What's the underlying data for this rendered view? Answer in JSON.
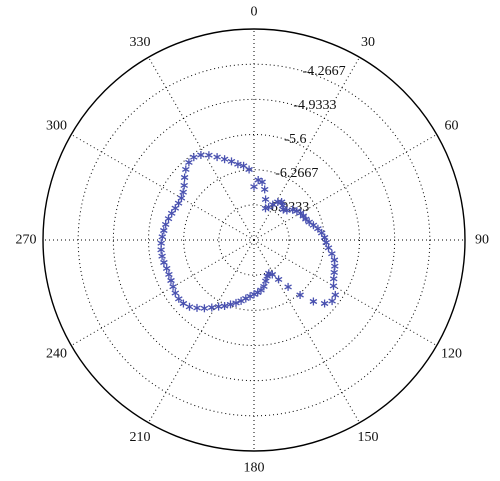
{
  "chart_data": {
    "type": "scatter",
    "projection": "polar",
    "title": "",
    "angle_unit": "degrees",
    "angle_zero": "top",
    "angle_direction": "clockwise",
    "angular_ticks": [
      "0",
      "30",
      "60",
      "90",
      "120",
      "150",
      "180",
      "210",
      "240",
      "270",
      "300",
      "330"
    ],
    "angular_tick_values": [
      0,
      30,
      60,
      90,
      120,
      150,
      180,
      210,
      240,
      270,
      300,
      330
    ],
    "radial_ticks": [
      "-4.2667",
      "-4.9333",
      "-5.6",
      "-6.2667",
      "-6.9333"
    ],
    "radial_tick_values": [
      -4.2667,
      -4.9333,
      -5.6,
      -6.2667,
      -6.9333
    ],
    "r_range": [
      -7.6,
      -3.6
    ],
    "grid": true,
    "marker": "asterisk",
    "marker_color": "#4a52b0",
    "series": [
      {
        "theta": [
          0,
          4,
          8,
          12,
          16,
          20,
          24,
          28,
          32,
          36,
          40,
          44,
          48,
          52,
          56,
          60,
          64,
          68,
          72,
          76,
          80,
          84,
          88,
          92,
          96,
          100,
          104,
          108,
          112,
          116,
          120,
          124,
          128,
          132,
          136,
          140,
          144,
          148,
          152,
          156,
          160,
          164,
          168,
          172,
          176,
          180,
          184,
          188,
          192,
          196,
          200,
          204,
          208,
          212,
          216,
          220,
          224,
          228,
          232,
          236,
          240,
          244,
          248,
          252,
          256,
          260,
          264,
          268,
          272,
          276,
          280,
          284,
          288,
          292,
          296,
          300,
          304,
          308,
          312,
          316,
          320,
          324,
          328,
          332,
          336,
          340,
          344,
          348,
          352,
          356
        ],
        "r": [
          -6.59,
          -6.46,
          -6.49,
          -6.62,
          -6.8,
          -6.96,
          -6.92,
          -6.84,
          -6.75,
          -6.71,
          -6.75,
          -6.8,
          -6.76,
          -6.67,
          -6.62,
          -6.58,
          -6.56,
          -6.54,
          -6.5,
          -6.44,
          -6.37,
          -6.31,
          -6.26,
          -6.23,
          -6.18,
          -6.1,
          -6.03,
          -5.99,
          -5.96,
          -5.92,
          -5.86,
          -5.74,
          -5.72,
          -5.8,
          -5.98,
          -6.24,
          -6.5,
          -6.72,
          -6.86,
          -6.91,
          -6.87,
          -6.79,
          -6.7,
          -6.64,
          -6.6,
          -6.57,
          -6.53,
          -6.48,
          -6.42,
          -6.36,
          -6.3,
          -6.23,
          -6.17,
          -6.09,
          -6.0,
          -5.92,
          -5.84,
          -5.8,
          -5.79,
          -5.8,
          -5.83,
          -5.85,
          -5.86,
          -5.86,
          -5.84,
          -5.83,
          -5.83,
          -5.84,
          -5.86,
          -5.88,
          -5.9,
          -5.93,
          -5.96,
          -5.99,
          -6.01,
          -6.01,
          -5.98,
          -5.92,
          -5.83,
          -5.74,
          -5.68,
          -5.66,
          -5.7,
          -5.78,
          -5.88,
          -5.97,
          -6.05,
          -6.13,
          -6.18,
          -6.26
        ]
      }
    ]
  }
}
